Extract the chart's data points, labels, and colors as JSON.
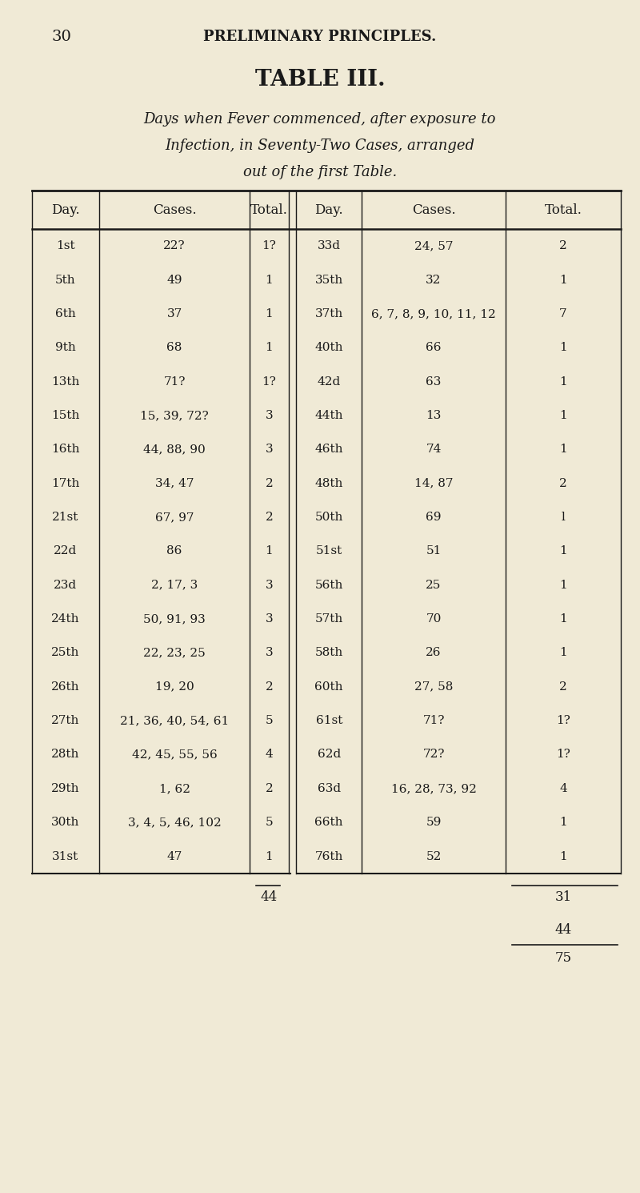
{
  "page_number": "30",
  "header": "PRELIMINARY PRINCIPLES.",
  "title": "TABLE III.",
  "subtitle_line1": "Days when Fever commenced, after exposure to",
  "subtitle_line2": "Infection, in Seventy-Two Cases, arranged",
  "subtitle_line3": "out of the first Table.",
  "bg_color": "#f0ead6",
  "col_headers": [
    "Day.",
    "Cases.",
    "Total.",
    "Day.",
    "Cases.",
    "Total."
  ],
  "left_rows": [
    [
      "1st",
      "22?",
      "1?"
    ],
    [
      "5th",
      "49",
      "1"
    ],
    [
      "6th",
      "37",
      "1"
    ],
    [
      "9th",
      "68",
      "1"
    ],
    [
      "13th",
      "71?",
      "1?"
    ],
    [
      "15th",
      "15, 39, 72?",
      "3"
    ],
    [
      "16th",
      "44, 88, 90",
      "3"
    ],
    [
      "17th",
      "34, 47",
      "2"
    ],
    [
      "21st",
      "67, 97",
      "2"
    ],
    [
      "22d",
      "86",
      "1"
    ],
    [
      "23d",
      "2, 17, 3",
      "3"
    ],
    [
      "24th",
      "50, 91, 93",
      "3"
    ],
    [
      "25th",
      "22, 23, 25",
      "3"
    ],
    [
      "26th",
      "19, 20",
      "2"
    ],
    [
      "27th",
      "21, 36, 40, 54, 61",
      "5"
    ],
    [
      "28th",
      "42, 45, 55, 56",
      "4"
    ],
    [
      "29th",
      "1, 62",
      "2"
    ],
    [
      "30th",
      "3, 4, 5, 46, 102",
      "5"
    ],
    [
      "31st",
      "47",
      "1"
    ]
  ],
  "right_rows": [
    [
      "33d",
      "24, 57",
      "2"
    ],
    [
      "35th",
      "32",
      "1"
    ],
    [
      "37th",
      "6, 7, 8, 9, 10, 11, 12",
      "7"
    ],
    [
      "40th",
      "66",
      "1"
    ],
    [
      "42d",
      "63",
      "1"
    ],
    [
      "44th",
      "13",
      "1"
    ],
    [
      "46th",
      "74",
      "1"
    ],
    [
      "48th",
      "14, 87",
      "2"
    ],
    [
      "50th",
      "69",
      "l"
    ],
    [
      "51st",
      "51",
      "1"
    ],
    [
      "56th",
      "25",
      "1"
    ],
    [
      "57th",
      "70",
      "1"
    ],
    [
      "58th",
      "26",
      "1"
    ],
    [
      "60th",
      "27, 58",
      "2"
    ],
    [
      "61st",
      "71?",
      "1?"
    ],
    [
      "62d",
      "72?",
      "1?"
    ],
    [
      "63d",
      "16, 28, 73, 92",
      "4"
    ],
    [
      "66th",
      "59",
      "1"
    ],
    [
      "76th",
      "52",
      "1"
    ]
  ],
  "left_total": "44",
  "right_total_line1": "31",
  "right_total_line2": "44",
  "grand_total": "75"
}
